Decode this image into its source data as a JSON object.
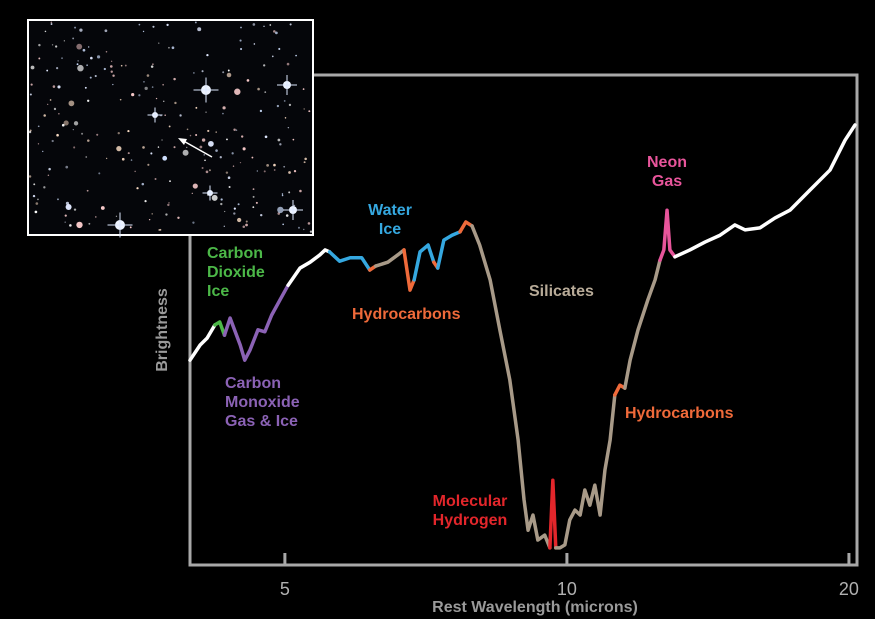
{
  "chart_data": {
    "type": "line",
    "xscale": "log",
    "xlabel": "Rest Wavelength (microns)",
    "ylabel": "Brightness",
    "xlim": [
      3.96,
      20.4
    ],
    "ylim": [
      0,
      100
    ],
    "xticks": [
      5,
      10,
      20
    ],
    "series": [
      {
        "color": "#ffffff",
        "x": [
          3.96,
          4.06,
          4.13,
          4.21
        ],
        "values": [
          41.8,
          44.9,
          46.3,
          49.0
        ]
      },
      {
        "color": "#4cb848",
        "x": [
          4.21,
          4.26,
          4.31
        ],
        "values": [
          49.0,
          49.6,
          46.9
        ]
      },
      {
        "color": "#8b62b5",
        "x": [
          4.31,
          4.37,
          4.48,
          4.53,
          4.59,
          4.68,
          4.76,
          4.84,
          4.94,
          5.04
        ],
        "values": [
          46.9,
          50.4,
          44.9,
          41.8,
          43.9,
          48.0,
          47.6,
          51.0,
          54.1,
          57.1
        ]
      },
      {
        "color": "#ffffff",
        "x": [
          5.04,
          5.19,
          5.32,
          5.45,
          5.52,
          5.58
        ],
        "values": [
          57.1,
          60.6,
          61.8,
          63.3,
          64.3,
          63.9
        ]
      },
      {
        "color": "#35a8e0",
        "x": [
          5.58,
          5.72,
          5.87,
          6.04,
          6.16
        ],
        "values": [
          63.9,
          62.0,
          62.7,
          62.7,
          60.2
        ]
      },
      {
        "color": "#ef6a3a",
        "x": [
          6.16,
          6.25
        ],
        "values": [
          60.2,
          61.0
        ]
      },
      {
        "color": "#a89a88",
        "x": [
          6.25,
          6.44,
          6.6,
          6.7
        ],
        "values": [
          61.0,
          61.8,
          63.3,
          64.3
        ]
      },
      {
        "color": "#ef6a3a",
        "x": [
          6.7,
          6.8,
          6.87
        ],
        "values": [
          64.3,
          56.1,
          58.2
        ]
      },
      {
        "color": "#35a8e0",
        "x": [
          6.87,
          6.97,
          7.11,
          7.21
        ],
        "values": [
          58.2,
          63.9,
          65.3,
          61.8
        ]
      },
      {
        "color": "#ef6a3a",
        "x": [
          7.21,
          7.28
        ],
        "values": [
          61.8,
          60.6
        ]
      },
      {
        "color": "#35a8e0",
        "x": [
          7.28,
          7.39,
          7.54,
          7.69
        ],
        "values": [
          60.6,
          66.3,
          67.3,
          68.0
        ]
      },
      {
        "color": "#ef6a3a",
        "x": [
          7.69,
          7.8,
          7.92
        ],
        "values": [
          68.0,
          70.0,
          69.2
        ]
      },
      {
        "color": "#a89a88",
        "x": [
          7.92,
          8.07,
          8.28,
          8.48,
          8.69,
          8.87,
          9.0,
          9.09,
          9.2,
          9.31,
          9.47,
          9.59
        ],
        "values": [
          69.2,
          65.3,
          58.2,
          48.0,
          37.8,
          25.5,
          13.3,
          7.1,
          10.2,
          5.1,
          6.1,
          3.5
        ]
      },
      {
        "color": "#e3262b",
        "x": [
          9.59,
          9.66,
          9.73
        ],
        "values": [
          3.5,
          17.3,
          3.5
        ]
      },
      {
        "color": "#a89a88",
        "x": [
          9.73,
          9.83,
          9.95,
          10.07,
          10.2,
          10.33,
          10.45,
          10.58,
          10.71,
          10.85,
          10.98,
          11.12,
          11.25
        ],
        "values": [
          3.5,
          3.5,
          4.1,
          9.2,
          11.2,
          10.2,
          15.3,
          12.2,
          16.3,
          10.2,
          19.4,
          25.5,
          34.7
        ]
      },
      {
        "color": "#ef6a3a",
        "x": [
          11.25,
          11.39,
          11.53
        ],
        "values": [
          34.7,
          36.7,
          36.1
        ]
      },
      {
        "color": "#a89a88",
        "x": [
          11.53,
          11.68,
          11.91,
          12.2,
          12.42,
          12.57
        ],
        "values": [
          36.1,
          41.8,
          48.0,
          54.1,
          58.2,
          62.2
        ]
      },
      {
        "color": "#e8559b",
        "x": [
          12.57,
          12.69,
          12.79,
          12.88,
          13.04
        ],
        "values": [
          62.2,
          64.3,
          72.4,
          64.3,
          62.9
        ]
      },
      {
        "color": "#ffffff",
        "x": [
          13.04,
          13.53,
          14.04,
          14.57,
          15.11,
          15.49,
          16.07,
          16.67,
          17.3,
          18.17,
          19.09,
          19.81,
          20.3
        ],
        "values": [
          62.9,
          64.3,
          65.9,
          67.3,
          69.4,
          68.4,
          68.8,
          70.8,
          72.4,
          76.5,
          80.6,
          86.7,
          89.8
        ]
      }
    ],
    "annotations": [
      {
        "text": "Carbon Dioxide Ice",
        "color": "#4cb848"
      },
      {
        "text": "Carbon Monoxide Gas & Ice",
        "color": "#8b62b5"
      },
      {
        "text": "Water Ice",
        "color": "#35a8e0"
      },
      {
        "text": "Hydrocarbons",
        "color": "#ef6a3a"
      },
      {
        "text": "Silicates",
        "color": "#b8ab98"
      },
      {
        "text": "Molecular Hydrogen",
        "color": "#e3262b"
      },
      {
        "text": "Hydrocarbons",
        "color": "#ef6a3a"
      },
      {
        "text": "Neon Gas",
        "color": "#e8559b"
      }
    ]
  }
}
